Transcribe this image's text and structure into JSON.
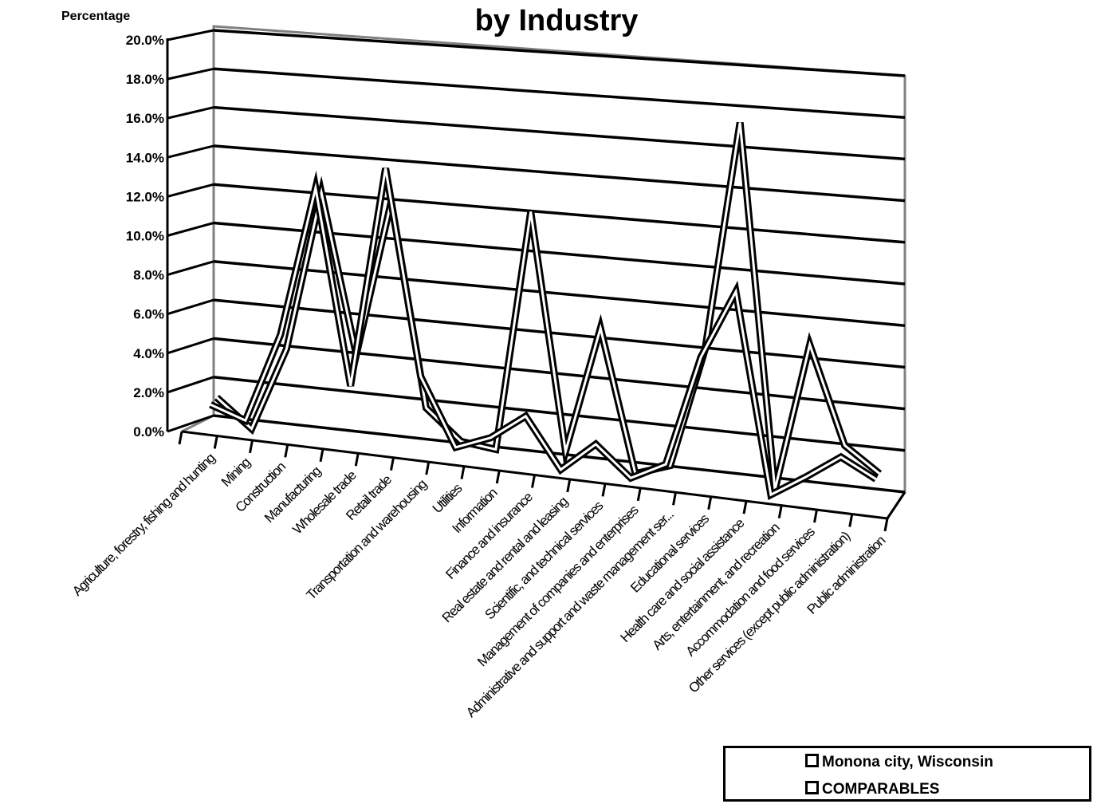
{
  "chart_data": {
    "type": "line",
    "style": "3d",
    "title": "by Industry",
    "ylabel": "Percentage",
    "xlabel": "",
    "ylim": [
      0,
      20
    ],
    "yticks": [
      "0.0%",
      "2.0%",
      "4.0%",
      "6.0%",
      "8.0%",
      "10.0%",
      "12.0%",
      "14.0%",
      "16.0%",
      "18.0%",
      "20.0%"
    ],
    "grid": true,
    "legend_position": "bottom-right",
    "categories": [
      "Agriculture, forestry, fishing and hunting",
      "Mining",
      "Construction",
      "Manufacturing",
      "Wholesale trade",
      "Retail trade",
      "Transportation and warehousing",
      "Utilities",
      "Information",
      "Finance and insurance",
      "Real estate and rental and leasing",
      "Scientific, and technical services",
      "Management of companies and enterprises",
      "Administrative and support and waste management ser...",
      "Educational services",
      "Health care and social assistance",
      "Arts, entertainment, and recreation",
      "Accommodation and food services",
      "Other services (except public administration)",
      "Public administration"
    ],
    "series": [
      {
        "name": "Monona city, Wisconsin",
        "values": [
          1.4,
          0.0,
          4.3,
          12.5,
          4.4,
          12.4,
          2.1,
          0.6,
          0.4,
          12.6,
          0.7,
          7.1,
          0.0,
          0.6,
          6.6,
          18.1,
          0.0,
          7.4,
          2.6,
          1.4
        ]
      },
      {
        "name": "COMPARABLES",
        "values": [
          1.2,
          0.6,
          5.2,
          12.9,
          3.0,
          14.3,
          3.9,
          0.5,
          1.2,
          2.5,
          0.0,
          1.5,
          0.0,
          0.9,
          6.5,
          10.0,
          0.0,
          1.1,
          2.3,
          1.4
        ]
      }
    ],
    "colors": {
      "line": "#000000",
      "fill": "#ffffff",
      "wall": "#808080",
      "grid": "#000000"
    }
  }
}
